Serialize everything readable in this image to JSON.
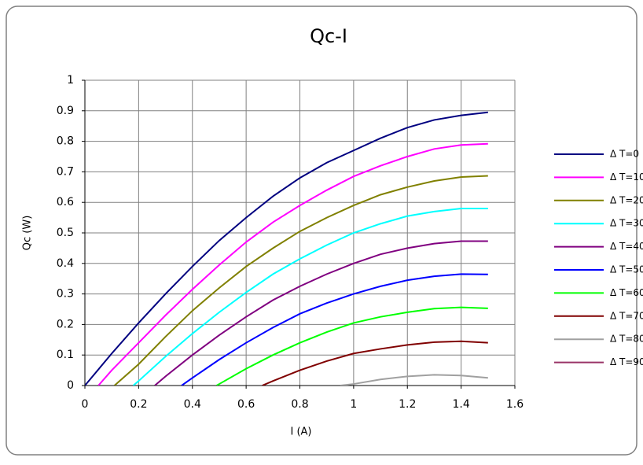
{
  "chart_data": {
    "type": "line",
    "title": "Qc-I",
    "x_label": "I (A)",
    "y_label": "Qc (W)",
    "xlim": [
      0,
      1.6
    ],
    "xticks": [
      0,
      0.2,
      0.4,
      0.6,
      0.8,
      1,
      1.2,
      1.4,
      1.6
    ],
    "ylim": [
      0,
      1
    ],
    "yticks": [
      0,
      0.1,
      0.2,
      0.3,
      0.4,
      0.5,
      0.6,
      0.7,
      0.8,
      0.9,
      1
    ],
    "grid": true,
    "legend": "right",
    "series": [
      {
        "name": "Δ T=0",
        "color": "#000080",
        "x": [
          0,
          0.1,
          0.2,
          0.3,
          0.4,
          0.5,
          0.6,
          0.7,
          0.8,
          0.9,
          1.0,
          1.1,
          1.2,
          1.3,
          1.4,
          1.5
        ],
        "values": [
          0,
          0.105,
          0.205,
          0.3,
          0.39,
          0.475,
          0.55,
          0.62,
          0.68,
          0.73,
          0.77,
          0.81,
          0.845,
          0.87,
          0.885,
          0.895
        ]
      },
      {
        "name": "Δ T=10",
        "color": "#ff00ff",
        "x": [
          0.05,
          0.1,
          0.2,
          0.3,
          0.4,
          0.5,
          0.6,
          0.7,
          0.8,
          0.9,
          1.0,
          1.1,
          1.2,
          1.3,
          1.4,
          1.5
        ],
        "values": [
          0,
          0.05,
          0.14,
          0.23,
          0.315,
          0.395,
          0.47,
          0.535,
          0.59,
          0.64,
          0.685,
          0.72,
          0.75,
          0.775,
          0.788,
          0.792
        ]
      },
      {
        "name": "Δ T=20",
        "color": "#808000",
        "x": [
          0.11,
          0.2,
          0.3,
          0.4,
          0.5,
          0.6,
          0.7,
          0.8,
          0.9,
          1.0,
          1.1,
          1.2,
          1.3,
          1.4,
          1.5
        ],
        "values": [
          0,
          0.07,
          0.16,
          0.245,
          0.32,
          0.39,
          0.45,
          0.505,
          0.55,
          0.59,
          0.625,
          0.65,
          0.67,
          0.683,
          0.687
        ]
      },
      {
        "name": "Δ T=30",
        "color": "#00ffff",
        "x": [
          0.18,
          0.2,
          0.3,
          0.4,
          0.5,
          0.6,
          0.7,
          0.8,
          0.9,
          1.0,
          1.1,
          1.2,
          1.3,
          1.4,
          1.5
        ],
        "values": [
          0,
          0.015,
          0.095,
          0.17,
          0.24,
          0.305,
          0.365,
          0.415,
          0.46,
          0.5,
          0.53,
          0.555,
          0.57,
          0.58,
          0.58
        ]
      },
      {
        "name": "Δ T=40",
        "color": "#800080",
        "x": [
          0.26,
          0.3,
          0.4,
          0.5,
          0.6,
          0.7,
          0.8,
          0.9,
          1.0,
          1.1,
          1.2,
          1.3,
          1.4,
          1.5
        ],
        "values": [
          0,
          0.03,
          0.1,
          0.165,
          0.225,
          0.28,
          0.325,
          0.365,
          0.4,
          0.43,
          0.45,
          0.465,
          0.473,
          0.473
        ]
      },
      {
        "name": "Δ T=50",
        "color": "#0000ff",
        "x": [
          0.36,
          0.4,
          0.5,
          0.6,
          0.7,
          0.8,
          0.9,
          1.0,
          1.1,
          1.2,
          1.3,
          1.4,
          1.5
        ],
        "values": [
          0,
          0.025,
          0.085,
          0.14,
          0.19,
          0.235,
          0.27,
          0.3,
          0.325,
          0.345,
          0.358,
          0.365,
          0.364
        ]
      },
      {
        "name": "Δ T=60",
        "color": "#00ff00",
        "x": [
          0.49,
          0.5,
          0.6,
          0.7,
          0.8,
          0.9,
          1.0,
          1.1,
          1.2,
          1.3,
          1.4,
          1.5
        ],
        "values": [
          0,
          0.005,
          0.055,
          0.1,
          0.14,
          0.175,
          0.205,
          0.225,
          0.24,
          0.252,
          0.256,
          0.253
        ]
      },
      {
        "name": "Δ T=70",
        "color": "#800000",
        "x": [
          0.66,
          0.7,
          0.8,
          0.9,
          1.0,
          1.1,
          1.2,
          1.3,
          1.4,
          1.5
        ],
        "values": [
          0,
          0.015,
          0.05,
          0.08,
          0.105,
          0.12,
          0.133,
          0.142,
          0.145,
          0.14
        ]
      },
      {
        "name": "Δ T=80",
        "color": "#a0a0a0",
        "x": [
          0.95,
          1.0,
          1.1,
          1.2,
          1.3,
          1.4,
          1.5
        ],
        "values": [
          0,
          0.005,
          0.02,
          0.03,
          0.035,
          0.033,
          0.025
        ]
      },
      {
        "name": "Δ T=90",
        "color": "#993366",
        "x": [],
        "values": []
      }
    ]
  }
}
